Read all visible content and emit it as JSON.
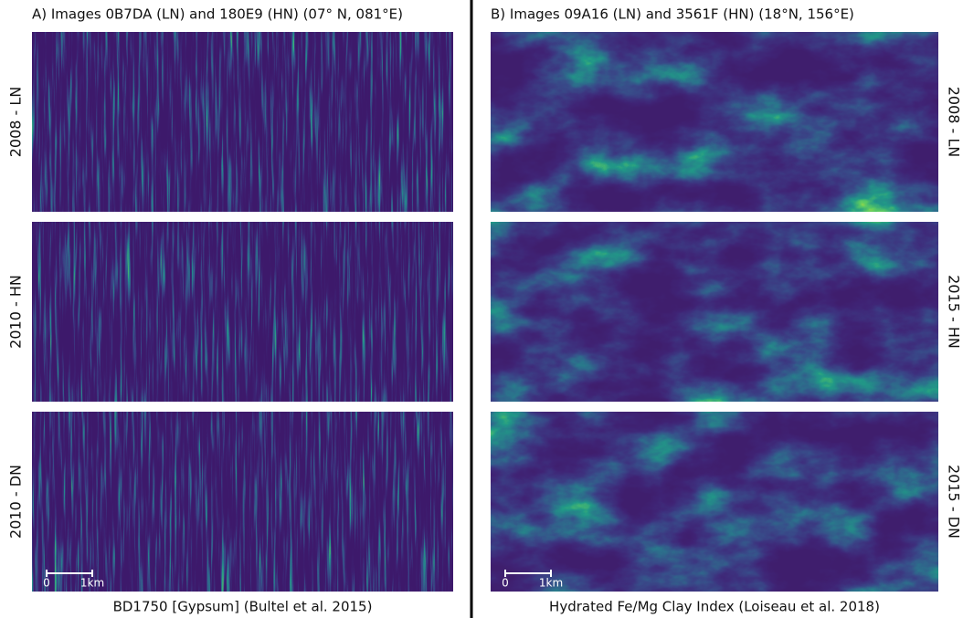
{
  "panels": [
    {
      "title": "A) Images 0B7DA (LN) and 180E9 (HN) (07° N, 081°E)",
      "row_labels": [
        "2008 - LN",
        "2010 - HN",
        "2010 - DN"
      ],
      "scale_bar": {
        "start": "0",
        "end": "1km"
      },
      "caption": "BD1750 [Gypsum] (Bultel et al. 2015)"
    },
    {
      "title": "B) Images 09A16 (LN) and 3561F (HN) (18°N, 156°E)",
      "row_labels": [
        "2008 - LN",
        "2015 - HN",
        "2015 - DN"
      ],
      "scale_bar": {
        "start": "0",
        "end": "1km"
      },
      "caption": "Hydrated Fe/Mg Clay Index (Loiseau et al. 2018)"
    }
  ]
}
